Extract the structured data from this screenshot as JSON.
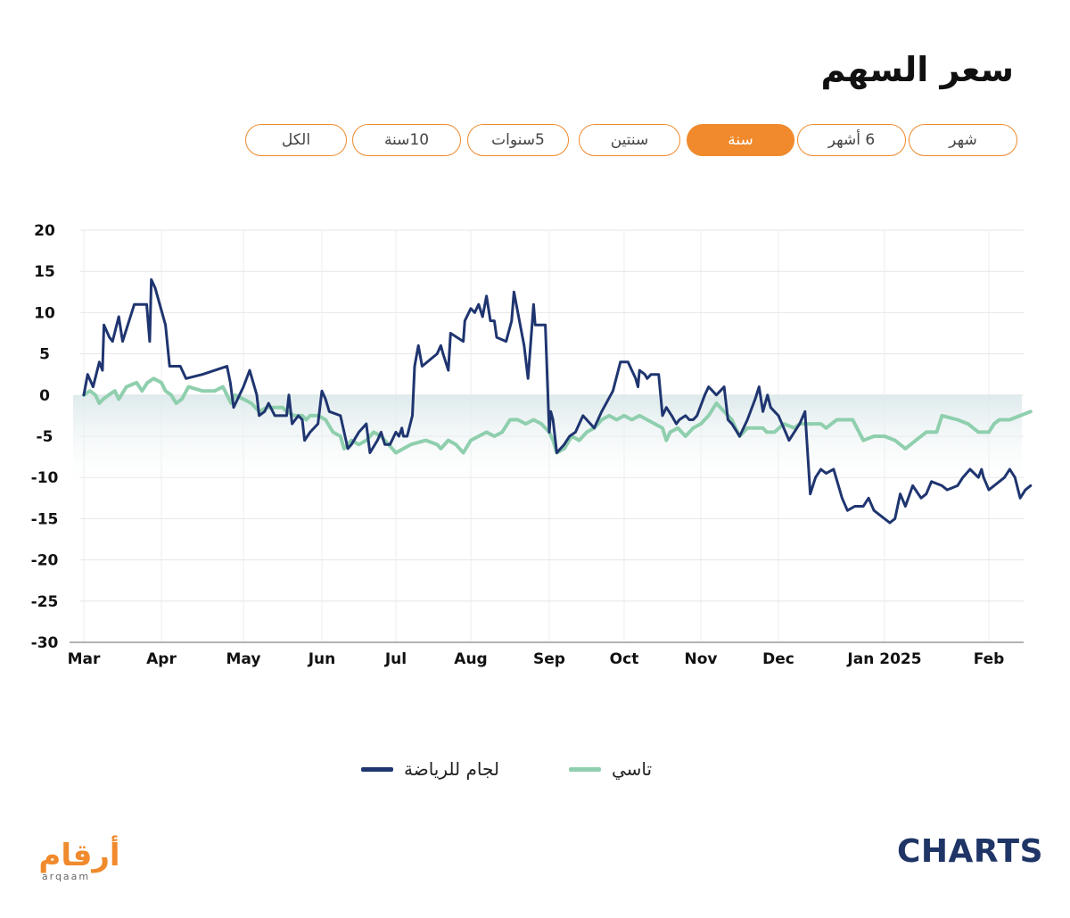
{
  "title": "سعر السهم",
  "tabs": [
    {
      "label": "شهر",
      "active": false
    },
    {
      "label": "6 أشهر",
      "active": false
    },
    {
      "label": "سنة",
      "active": true
    },
    {
      "label": "سنتين",
      "active": false
    },
    {
      "label": "5سنوات",
      "active": false
    },
    {
      "label": "10سنة",
      "active": false
    },
    {
      "label": "الكل",
      "active": false
    }
  ],
  "colors": {
    "accent": "#f08a2c",
    "series1": "#1f3570",
    "series2": "#8fcfae",
    "brand": "#1f3566"
  },
  "chart_data": {
    "type": "line",
    "ylim": [
      -30,
      20
    ],
    "yticks": [
      20,
      15,
      10,
      5,
      0,
      -5,
      -10,
      -15,
      -20,
      -25,
      -30
    ],
    "xticks": [
      "Mar",
      "Apr",
      "May",
      "Jun",
      "Jul",
      "Aug",
      "Sep",
      "Oct",
      "Nov",
      "Dec",
      "Jan 2025",
      "Feb"
    ],
    "grid": true,
    "legend_position": "bottom-center",
    "x_domain_months": [
      0,
      11.45
    ],
    "series": [
      {
        "name": "لجام للرياضة",
        "color": "#1f3570",
        "points": [
          [
            0.0,
            0
          ],
          [
            0.05,
            2.5
          ],
          [
            0.12,
            1
          ],
          [
            0.2,
            4
          ],
          [
            0.24,
            3
          ],
          [
            0.26,
            8.5
          ],
          [
            0.33,
            7
          ],
          [
            0.37,
            6.5
          ],
          [
            0.45,
            9.5
          ],
          [
            0.5,
            6.5
          ],
          [
            0.65,
            11
          ],
          [
            0.75,
            11
          ],
          [
            0.81,
            11
          ],
          [
            0.85,
            6.5
          ],
          [
            0.87,
            14
          ],
          [
            0.92,
            13
          ],
          [
            1.05,
            8.5
          ],
          [
            1.1,
            3.5
          ],
          [
            1.23,
            3.5
          ],
          [
            1.3,
            2
          ],
          [
            1.5,
            2.5
          ],
          [
            1.8,
            3.5
          ],
          [
            1.84,
            1.5
          ],
          [
            1.88,
            -1.5
          ],
          [
            2.0,
            1
          ],
          [
            2.08,
            3
          ],
          [
            2.17,
            0
          ],
          [
            2.2,
            -2.5
          ],
          [
            2.27,
            -2
          ],
          [
            2.32,
            -1
          ],
          [
            2.4,
            -2.5
          ],
          [
            2.55,
            -2.5
          ],
          [
            2.58,
            0
          ],
          [
            2.62,
            -3.5
          ],
          [
            2.7,
            -2.5
          ],
          [
            2.75,
            -3
          ],
          [
            2.78,
            -5.5
          ],
          [
            2.85,
            -4.5
          ],
          [
            2.95,
            -3.5
          ],
          [
            3.0,
            0.5
          ],
          [
            3.05,
            -0.5
          ],
          [
            3.1,
            -2
          ],
          [
            3.25,
            -2.5
          ],
          [
            3.35,
            -6.5
          ],
          [
            3.4,
            -6
          ],
          [
            3.5,
            -4.5
          ],
          [
            3.6,
            -3.5
          ],
          [
            3.65,
            -7
          ],
          [
            3.75,
            -5.5
          ],
          [
            3.8,
            -4.5
          ],
          [
            3.85,
            -6
          ],
          [
            3.92,
            -6
          ],
          [
            4.0,
            -4.5
          ],
          [
            4.04,
            -5
          ],
          [
            4.08,
            -4
          ],
          [
            4.1,
            -5
          ],
          [
            4.15,
            -5
          ],
          [
            4.22,
            -2.5
          ],
          [
            4.25,
            3.5
          ],
          [
            4.3,
            6
          ],
          [
            4.35,
            3.5
          ],
          [
            4.55,
            5
          ],
          [
            4.6,
            6
          ],
          [
            4.63,
            5
          ],
          [
            4.7,
            3
          ],
          [
            4.73,
            7.5
          ],
          [
            4.9,
            6.5
          ],
          [
            4.92,
            9
          ],
          [
            5.0,
            10.5
          ],
          [
            5.05,
            10
          ],
          [
            5.1,
            11
          ],
          [
            5.15,
            9.5
          ],
          [
            5.2,
            12
          ],
          [
            5.25,
            9
          ],
          [
            5.3,
            9
          ],
          [
            5.33,
            7
          ],
          [
            5.45,
            6.5
          ],
          [
            5.52,
            9
          ],
          [
            5.55,
            12.5
          ],
          [
            5.68,
            6
          ],
          [
            5.73,
            2
          ],
          [
            5.8,
            11
          ],
          [
            5.82,
            8.5
          ],
          [
            5.95,
            8.5
          ],
          [
            6.0,
            -4.5
          ],
          [
            6.02,
            -2
          ],
          [
            6.05,
            -3
          ],
          [
            6.1,
            -7
          ],
          [
            6.2,
            -6
          ],
          [
            6.27,
            -5
          ],
          [
            6.35,
            -4.5
          ],
          [
            6.45,
            -2.5
          ],
          [
            6.6,
            -4
          ],
          [
            6.7,
            -2
          ],
          [
            6.85,
            0.5
          ],
          [
            6.95,
            4
          ],
          [
            7.05,
            4
          ],
          [
            7.1,
            3
          ],
          [
            7.15,
            2
          ],
          [
            7.18,
            1
          ],
          [
            7.2,
            3
          ],
          [
            7.27,
            2.5
          ],
          [
            7.3,
            2
          ],
          [
            7.35,
            2.5
          ],
          [
            7.45,
            2.5
          ],
          [
            7.5,
            -2.5
          ],
          [
            7.55,
            -1.5
          ],
          [
            7.62,
            -2.5
          ],
          [
            7.68,
            -3.5
          ],
          [
            7.72,
            -3
          ],
          [
            7.8,
            -2.5
          ],
          [
            7.85,
            -3
          ],
          [
            7.9,
            -3
          ],
          [
            7.95,
            -2.5
          ],
          [
            8.05,
            0
          ],
          [
            8.1,
            1
          ],
          [
            8.15,
            0.5
          ],
          [
            8.2,
            0
          ],
          [
            8.25,
            0.5
          ],
          [
            8.3,
            1
          ],
          [
            8.35,
            -3
          ],
          [
            8.4,
            -3.5
          ],
          [
            8.5,
            -5
          ],
          [
            8.6,
            -3
          ],
          [
            8.7,
            -0.5
          ],
          [
            8.75,
            1
          ],
          [
            8.8,
            -2
          ],
          [
            8.83,
            -1
          ],
          [
            8.86,
            0
          ],
          [
            8.9,
            -1.5
          ],
          [
            8.95,
            -2
          ],
          [
            9.0,
            -2.5
          ],
          [
            9.05,
            -4
          ],
          [
            9.1,
            -5.5
          ],
          [
            9.2,
            -3.5
          ],
          [
            9.25,
            -2
          ],
          [
            9.3,
            -12
          ],
          [
            9.35,
            -10
          ],
          [
            9.4,
            -9
          ],
          [
            9.45,
            -9.5
          ],
          [
            9.52,
            -9
          ],
          [
            9.6,
            -12.5
          ],
          [
            9.65,
            -14
          ],
          [
            9.72,
            -13.5
          ],
          [
            9.8,
            -13.5
          ],
          [
            9.85,
            -12.5
          ],
          [
            9.9,
            -14
          ],
          [
            10.0,
            -15
          ],
          [
            10.05,
            -15.5
          ],
          [
            10.1,
            -15
          ],
          [
            10.15,
            -12
          ],
          [
            10.2,
            -13.5
          ],
          [
            10.27,
            -11
          ],
          [
            10.35,
            -12.5
          ],
          [
            10.4,
            -12
          ],
          [
            10.45,
            -10.5
          ],
          [
            10.55,
            -11
          ],
          [
            10.6,
            -11.5
          ],
          [
            10.7,
            -11
          ],
          [
            10.75,
            -10
          ],
          [
            10.82,
            -9
          ],
          [
            10.9,
            -10
          ],
          [
            10.93,
            -9
          ],
          [
            10.95,
            -10
          ],
          [
            11.0,
            -11.5
          ],
          [
            11.05,
            -11
          ],
          [
            11.1,
            -10.5
          ],
          [
            11.15,
            -10
          ],
          [
            11.2,
            -9
          ],
          [
            11.25,
            -10
          ],
          [
            11.3,
            -12.5
          ],
          [
            11.35,
            -11.5
          ],
          [
            11.4,
            -11
          ]
        ]
      },
      {
        "name": "تاسي",
        "color": "#8fcfae",
        "points": [
          [
            0.0,
            0
          ],
          [
            0.08,
            0.5
          ],
          [
            0.15,
            0
          ],
          [
            0.2,
            -1
          ],
          [
            0.25,
            -0.5
          ],
          [
            0.32,
            0
          ],
          [
            0.4,
            0.5
          ],
          [
            0.45,
            -0.5
          ],
          [
            0.55,
            1
          ],
          [
            0.68,
            1.5
          ],
          [
            0.75,
            0.5
          ],
          [
            0.82,
            1.5
          ],
          [
            0.9,
            2
          ],
          [
            1.0,
            1.5
          ],
          [
            1.05,
            0.5
          ],
          [
            1.12,
            0
          ],
          [
            1.18,
            -1
          ],
          [
            1.25,
            -0.5
          ],
          [
            1.33,
            1
          ],
          [
            1.5,
            0.5
          ],
          [
            1.65,
            0.5
          ],
          [
            1.75,
            1
          ],
          [
            1.85,
            -1
          ],
          [
            1.9,
            0
          ],
          [
            2.0,
            -0.5
          ],
          [
            2.1,
            -1
          ],
          [
            2.2,
            -2
          ],
          [
            2.3,
            -1.5
          ],
          [
            2.4,
            -1.5
          ],
          [
            2.5,
            -1.5
          ],
          [
            2.55,
            -2
          ],
          [
            2.65,
            -2.5
          ],
          [
            2.75,
            -2.5
          ],
          [
            2.8,
            -3
          ],
          [
            2.85,
            -2.5
          ],
          [
            2.95,
            -2.5
          ],
          [
            3.05,
            -3
          ],
          [
            3.15,
            -4.5
          ],
          [
            3.25,
            -5
          ],
          [
            3.3,
            -6.5
          ],
          [
            3.4,
            -5.5
          ],
          [
            3.5,
            -6
          ],
          [
            3.6,
            -5.5
          ],
          [
            3.7,
            -4.5
          ],
          [
            3.8,
            -5
          ],
          [
            3.9,
            -6
          ],
          [
            4.0,
            -7
          ],
          [
            4.2,
            -6
          ],
          [
            4.4,
            -5.5
          ],
          [
            4.55,
            -6
          ],
          [
            4.6,
            -6.5
          ],
          [
            4.7,
            -5.5
          ],
          [
            4.8,
            -6
          ],
          [
            4.9,
            -7
          ],
          [
            5.0,
            -5.5
          ],
          [
            5.1,
            -5
          ],
          [
            5.2,
            -4.5
          ],
          [
            5.3,
            -5
          ],
          [
            5.4,
            -4.5
          ],
          [
            5.5,
            -3
          ],
          [
            5.6,
            -3
          ],
          [
            5.7,
            -3.5
          ],
          [
            5.8,
            -3
          ],
          [
            5.9,
            -3.5
          ],
          [
            6.0,
            -4.5
          ],
          [
            6.05,
            -5.5
          ],
          [
            6.1,
            -7
          ],
          [
            6.2,
            -6.5
          ],
          [
            6.3,
            -5
          ],
          [
            6.4,
            -5.5
          ],
          [
            6.5,
            -4.5
          ],
          [
            6.6,
            -4
          ],
          [
            6.7,
            -3
          ],
          [
            6.8,
            -2.5
          ],
          [
            6.9,
            -3
          ],
          [
            7.0,
            -2.5
          ],
          [
            7.1,
            -3
          ],
          [
            7.2,
            -2.5
          ],
          [
            7.3,
            -3
          ],
          [
            7.4,
            -3.5
          ],
          [
            7.5,
            -4
          ],
          [
            7.55,
            -5.5
          ],
          [
            7.6,
            -4.5
          ],
          [
            7.7,
            -4
          ],
          [
            7.8,
            -5
          ],
          [
            7.9,
            -4
          ],
          [
            8.0,
            -3.5
          ],
          [
            8.1,
            -2.5
          ],
          [
            8.2,
            -1
          ],
          [
            8.3,
            -2
          ],
          [
            8.4,
            -3
          ],
          [
            8.45,
            -4
          ],
          [
            8.5,
            -5
          ],
          [
            8.6,
            -4
          ],
          [
            8.7,
            -4
          ],
          [
            8.8,
            -4
          ],
          [
            8.85,
            -4.5
          ],
          [
            8.95,
            -4.5
          ],
          [
            9.05,
            -3.5
          ],
          [
            9.15,
            -4
          ],
          [
            9.2,
            -3.5
          ],
          [
            9.3,
            -3.5
          ],
          [
            9.4,
            -3.5
          ],
          [
            9.45,
            -4
          ],
          [
            9.55,
            -3
          ],
          [
            9.7,
            -3
          ],
          [
            9.8,
            -5.5
          ],
          [
            9.9,
            -5
          ],
          [
            10.0,
            -5
          ],
          [
            10.1,
            -5.5
          ],
          [
            10.2,
            -6.5
          ],
          [
            10.3,
            -5.5
          ],
          [
            10.4,
            -4.5
          ],
          [
            10.5,
            -4.5
          ],
          [
            10.55,
            -2.5
          ],
          [
            10.7,
            -3
          ],
          [
            10.8,
            -3.5
          ],
          [
            10.9,
            -4.5
          ],
          [
            11.0,
            -4.5
          ],
          [
            11.05,
            -3.5
          ],
          [
            11.1,
            -3
          ],
          [
            11.2,
            -3
          ],
          [
            11.3,
            -2.5
          ],
          [
            11.4,
            -2
          ]
        ]
      }
    ]
  },
  "legend": {
    "series1_label": "لجام للرياضة",
    "series2_label": "تاسي"
  },
  "logos": {
    "arqaam_ar": "أرقام",
    "arqaam_en": "arqaam",
    "charts": "CHARTS"
  }
}
